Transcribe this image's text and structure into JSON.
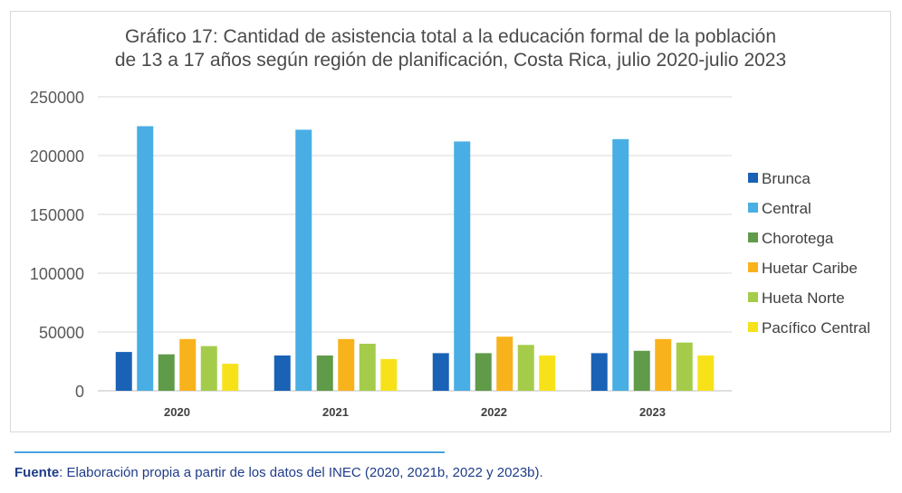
{
  "chart_data": {
    "type": "bar",
    "title_line1": "Gráfico 17: Cantidad de asistencia total a la educación formal de la población",
    "title_line2": "de 13 a 17 años según región de planificación, Costa Rica, julio 2020-julio 2023",
    "categories": [
      "2020",
      "2021",
      "2022",
      "2023"
    ],
    "ylim": [
      0,
      250000
    ],
    "yticks": [
      "0",
      "50000",
      "100000",
      "150000",
      "200000",
      "250000"
    ],
    "grid": true,
    "legend_position": "right",
    "series": [
      {
        "name": "Brunca",
        "color": "#1a62b5",
        "values": [
          33000,
          30000,
          32000,
          32000
        ]
      },
      {
        "name": "Central",
        "color": "#49aee3",
        "values": [
          225000,
          222000,
          212000,
          214000
        ]
      },
      {
        "name": "Chorotega",
        "color": "#5f9b49",
        "values": [
          31000,
          30000,
          32000,
          34000
        ]
      },
      {
        "name": "Huetar Caribe",
        "color": "#f8b21b",
        "values": [
          44000,
          44000,
          46000,
          44000
        ]
      },
      {
        "name": "Hueta Norte",
        "color": "#a4cc4a",
        "values": [
          38000,
          40000,
          39000,
          41000
        ]
      },
      {
        "name": "Pacífico Central",
        "color": "#f7e21a",
        "values": [
          23000,
          27000,
          30000,
          30000
        ]
      }
    ]
  },
  "footer": {
    "label": "Fuente",
    "text": ": Elaboración propia a partir de los datos del INEC (2020, 2021b, 2022 y 2023b)."
  }
}
